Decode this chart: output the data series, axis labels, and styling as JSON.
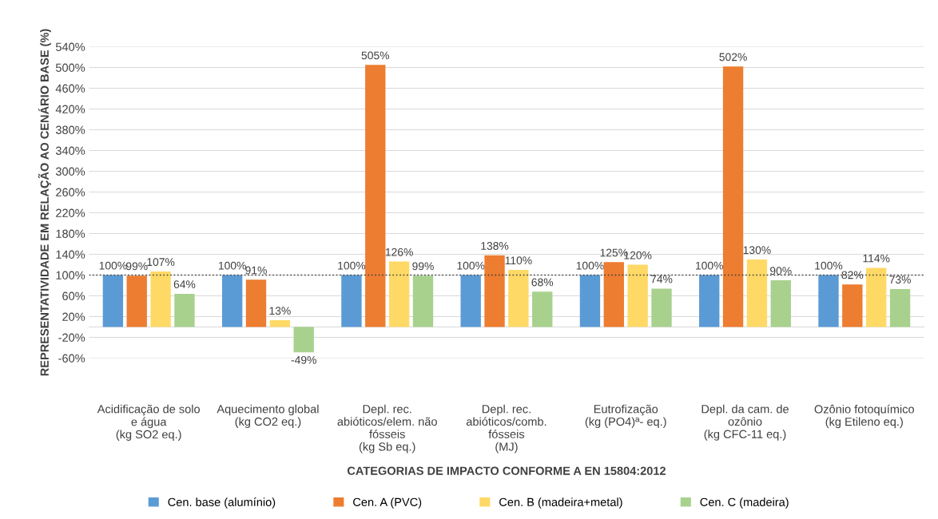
{
  "chart_data": {
    "type": "bar",
    "ylabel": "REPRESENTATIVIDADE EM RELAÇÃO AO CENÁRIO BASE (%)",
    "xlabel": "CATEGORIAS DE IMPACTO CONFORME A EN 15804:2012",
    "categories": [
      "Acidificação de solo\ne água\n(kg SO2 eq.)",
      "Aquecimento global\n(kg CO2 eq.)",
      "Depl. rec.\nabióticos/elem. não\nfósseis\n(kg Sb eq.)",
      "Depl. rec.\nabióticos/comb.\nfósseis\n(MJ)",
      "Eutrofização\n(kg (PO4)ª- eq.)",
      "Depl. da cam. de\nozônio\n(kg CFC-11 eq.)",
      "Ozônio fotoquímico\n(kg Etileno eq.)"
    ],
    "series": [
      {
        "name": "Cen. base (alumínio)",
        "color": "#5b9bd5",
        "values": [
          100,
          100,
          100,
          100,
          100,
          100,
          100
        ],
        "value_labels": [
          "100%",
          "100%",
          "100%",
          "100%",
          "100%",
          "100%",
          "100%"
        ]
      },
      {
        "name": "Cen. A (PVC)",
        "color": "#ed7d31",
        "values": [
          99,
          91,
          505,
          138,
          125,
          502,
          82
        ],
        "value_labels": [
          "99%",
          "91%",
          "505%",
          "138%",
          "125%",
          "502%",
          "82%"
        ]
      },
      {
        "name": "Cen. B (madeira+metal)",
        "color": "#ffd966",
        "values": [
          107,
          13,
          126,
          110,
          120,
          130,
          114
        ],
        "value_labels": [
          "107%",
          "13%",
          "126%",
          "110%",
          "120%",
          "130%",
          "114%"
        ]
      },
      {
        "name": "Cen. C (madeira)",
        "color": "#a9d18e",
        "values": [
          64,
          -49,
          99,
          68,
          74,
          90,
          73
        ],
        "value_labels": [
          "64%",
          "-49%",
          "99%",
          "68%",
          "74%",
          "90%",
          "73%"
        ]
      }
    ],
    "ylim": [
      -60,
      540
    ],
    "yticks": [
      {
        "value": -60,
        "label": "-60%"
      },
      {
        "value": -20,
        "label": "-20%"
      },
      {
        "value": 20,
        "label": "20%"
      },
      {
        "value": 60,
        "label": "60%"
      },
      {
        "value": 100,
        "label": "100%"
      },
      {
        "value": 140,
        "label": "140%"
      },
      {
        "value": 180,
        "label": "180%"
      },
      {
        "value": 220,
        "label": "220%"
      },
      {
        "value": 260,
        "label": "260%"
      },
      {
        "value": 300,
        "label": "300%"
      },
      {
        "value": 340,
        "label": "340%"
      },
      {
        "value": 380,
        "label": "380%"
      },
      {
        "value": 420,
        "label": "420%"
      },
      {
        "value": 460,
        "label": "460%"
      },
      {
        "value": 500,
        "label": "500%"
      },
      {
        "value": 540,
        "label": "540%"
      }
    ],
    "ref_lines": [
      {
        "axis": "y",
        "value": 100,
        "color": "#404040",
        "line_style": "dotted"
      }
    ],
    "grid": "y",
    "legend": "bottom"
  }
}
